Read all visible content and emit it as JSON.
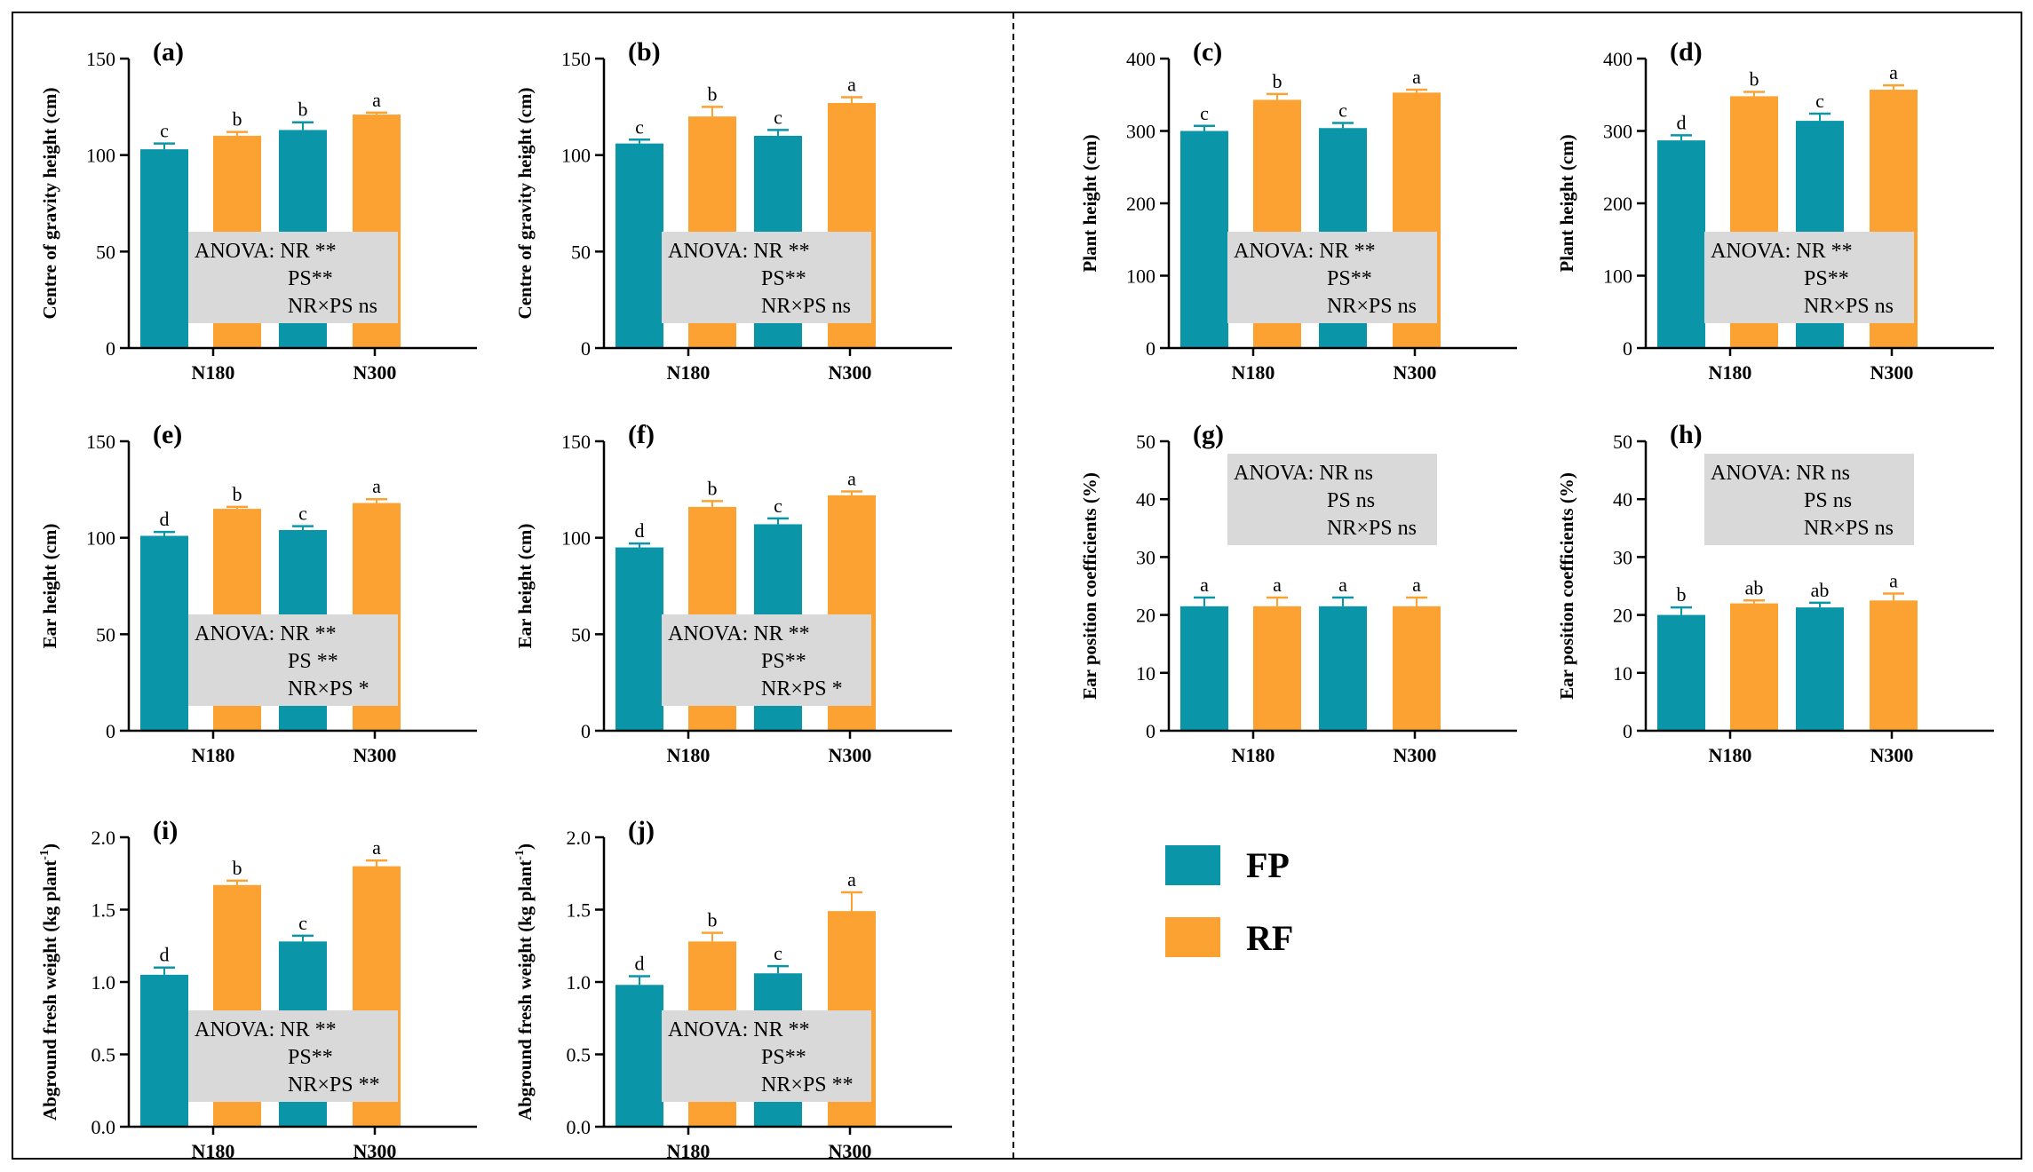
{
  "colors": {
    "FP": "#0a96a8",
    "RF": "#fca232",
    "anova_bg": "#d9d9d9",
    "axis": "#000000"
  },
  "legend": [
    {
      "key": "FP",
      "label": "FP"
    },
    {
      "key": "RF",
      "label": "RF"
    }
  ],
  "chart_data": [
    {
      "id": "a",
      "type": "bar",
      "panel_label": "(a)",
      "ylabel": "Centre of gravity height (cm)",
      "categories": [
        "N180",
        "N300"
      ],
      "ylim": [
        0,
        150
      ],
      "yticks": [
        0,
        50,
        100,
        150
      ],
      "series": [
        {
          "name": "FP",
          "values": [
            103,
            113
          ],
          "errors": [
            3,
            4
          ],
          "letters": [
            "c",
            "b"
          ]
        },
        {
          "name": "RF",
          "values": [
            110,
            121
          ],
          "errors": [
            2,
            1
          ],
          "letters": [
            "b",
            "a"
          ]
        }
      ],
      "anova": [
        "ANOVA: NR **",
        "PS**",
        "NR×PS ns"
      ],
      "anova_position": "bottom"
    },
    {
      "id": "b",
      "type": "bar",
      "panel_label": "(b)",
      "ylabel": "Centre of gravity height (cm)",
      "categories": [
        "N180",
        "N300"
      ],
      "ylim": [
        0,
        150
      ],
      "yticks": [
        0,
        50,
        100,
        150
      ],
      "series": [
        {
          "name": "FP",
          "values": [
            106,
            110
          ],
          "errors": [
            2,
            3
          ],
          "letters": [
            "c",
            "c"
          ]
        },
        {
          "name": "RF",
          "values": [
            120,
            127
          ],
          "errors": [
            5,
            3
          ],
          "letters": [
            "b",
            "a"
          ]
        }
      ],
      "anova": [
        "ANOVA: NR **",
        "PS**",
        "NR×PS ns"
      ],
      "anova_position": "bottom"
    },
    {
      "id": "c",
      "type": "bar",
      "panel_label": "(c)",
      "ylabel": "Plant height (cm)",
      "categories": [
        "N180",
        "N300"
      ],
      "ylim": [
        0,
        400
      ],
      "yticks": [
        0,
        100,
        200,
        300,
        400
      ],
      "series": [
        {
          "name": "FP",
          "values": [
            300,
            304
          ],
          "errors": [
            7,
            7
          ],
          "letters": [
            "c",
            "c"
          ]
        },
        {
          "name": "RF",
          "values": [
            343,
            353
          ],
          "errors": [
            8,
            4
          ],
          "letters": [
            "b",
            "a"
          ]
        }
      ],
      "anova": [
        "ANOVA: NR **",
        "PS**",
        "NR×PS ns"
      ],
      "anova_position": "bottom"
    },
    {
      "id": "d",
      "type": "bar",
      "panel_label": "(d)",
      "ylabel": "Plant height (cm)",
      "categories": [
        "N180",
        "N300"
      ],
      "ylim": [
        0,
        400
      ],
      "yticks": [
        0,
        100,
        200,
        300,
        400
      ],
      "series": [
        {
          "name": "FP",
          "values": [
            287,
            314
          ],
          "errors": [
            7,
            10
          ],
          "letters": [
            "d",
            "c"
          ]
        },
        {
          "name": "RF",
          "values": [
            348,
            357
          ],
          "errors": [
            6,
            6
          ],
          "letters": [
            "b",
            "a"
          ]
        }
      ],
      "anova": [
        "ANOVA: NR **",
        "PS**",
        "NR×PS ns"
      ],
      "anova_position": "bottom"
    },
    {
      "id": "e",
      "type": "bar",
      "panel_label": "(e)",
      "ylabel": "Ear height (cm)",
      "categories": [
        "N180",
        "N300"
      ],
      "ylim": [
        0,
        150
      ],
      "yticks": [
        0,
        50,
        100,
        150
      ],
      "series": [
        {
          "name": "FP",
          "values": [
            101,
            104
          ],
          "errors": [
            2,
            2
          ],
          "letters": [
            "d",
            "c"
          ]
        },
        {
          "name": "RF",
          "values": [
            115,
            118
          ],
          "errors": [
            1,
            2
          ],
          "letters": [
            "b",
            "a"
          ]
        }
      ],
      "anova": [
        "ANOVA: NR **",
        "PS **",
        "NR×PS *"
      ],
      "anova_position": "bottom"
    },
    {
      "id": "f",
      "type": "bar",
      "panel_label": "(f)",
      "ylabel": "Ear height (cm)",
      "categories": [
        "N180",
        "N300"
      ],
      "ylim": [
        0,
        150
      ],
      "yticks": [
        0,
        50,
        100,
        150
      ],
      "series": [
        {
          "name": "FP",
          "values": [
            95,
            107
          ],
          "errors": [
            2,
            3
          ],
          "letters": [
            "d",
            "c"
          ]
        },
        {
          "name": "RF",
          "values": [
            116,
            122
          ],
          "errors": [
            3,
            2
          ],
          "letters": [
            "b",
            "a"
          ]
        }
      ],
      "anova": [
        "ANOVA: NR **",
        "PS**",
        "NR×PS *"
      ],
      "anova_position": "bottom"
    },
    {
      "id": "g",
      "type": "bar",
      "panel_label": "(g)",
      "ylabel": "Ear position coefficients (%)",
      "categories": [
        "N180",
        "N300"
      ],
      "ylim": [
        0,
        50
      ],
      "yticks": [
        0,
        10,
        20,
        30,
        40,
        50
      ],
      "series": [
        {
          "name": "FP",
          "values": [
            21.5,
            21.5
          ],
          "errors": [
            1.5,
            1.5
          ],
          "letters": [
            "a",
            "a"
          ]
        },
        {
          "name": "RF",
          "values": [
            21.5,
            21.5
          ],
          "errors": [
            1.5,
            1.5
          ],
          "letters": [
            "a",
            "a"
          ]
        }
      ],
      "anova": [
        "ANOVA: NR ns",
        "PS ns",
        "NR×PS ns"
      ],
      "anova_position": "top"
    },
    {
      "id": "h",
      "type": "bar",
      "panel_label": "(h)",
      "ylabel": "Ear position coefficients (%)",
      "categories": [
        "N180",
        "N300"
      ],
      "ylim": [
        0,
        50
      ],
      "yticks": [
        0,
        10,
        20,
        30,
        40,
        50
      ],
      "series": [
        {
          "name": "FP",
          "values": [
            20,
            21.3
          ],
          "errors": [
            1.3,
            0.8
          ],
          "letters": [
            "b",
            "ab"
          ]
        },
        {
          "name": "RF",
          "values": [
            22,
            22.5
          ],
          "errors": [
            0.5,
            1.2
          ],
          "letters": [
            "ab",
            "a"
          ]
        }
      ],
      "anova": [
        "ANOVA: NR ns",
        "PS ns",
        "NR×PS ns"
      ],
      "anova_position": "top"
    },
    {
      "id": "i",
      "type": "bar",
      "panel_label": "(i)",
      "ylabel": "Abground fresh weight (kg plant",
      "ylabel_superscript": "-1",
      "ylabel_suffix": ")",
      "categories": [
        "N180",
        "N300"
      ],
      "ylim": [
        0,
        2.0
      ],
      "yticks": [
        0.0,
        0.5,
        1.0,
        1.5,
        2.0
      ],
      "series": [
        {
          "name": "FP",
          "values": [
            1.05,
            1.28
          ],
          "errors": [
            0.05,
            0.04
          ],
          "letters": [
            "d",
            "c"
          ]
        },
        {
          "name": "RF",
          "values": [
            1.67,
            1.8
          ],
          "errors": [
            0.03,
            0.04
          ],
          "letters": [
            "b",
            "a"
          ]
        }
      ],
      "anova": [
        "ANOVA: NR **",
        "PS**",
        "NR×PS **"
      ],
      "anova_position": "bottom"
    },
    {
      "id": "j",
      "type": "bar",
      "panel_label": "(j)",
      "ylabel": "Abground fresh weight (kg plant",
      "ylabel_superscript": "-1",
      "ylabel_suffix": ")",
      "categories": [
        "N180",
        "N300"
      ],
      "ylim": [
        0,
        2.0
      ],
      "yticks": [
        0.0,
        0.5,
        1.0,
        1.5,
        2.0
      ],
      "series": [
        {
          "name": "FP",
          "values": [
            0.98,
            1.06
          ],
          "errors": [
            0.06,
            0.05
          ],
          "letters": [
            "d",
            "c"
          ]
        },
        {
          "name": "RF",
          "values": [
            1.28,
            1.49
          ],
          "errors": [
            0.06,
            0.13
          ],
          "letters": [
            "b",
            "a"
          ]
        }
      ],
      "anova": [
        "ANOVA: NR **",
        "PS**",
        "NR×PS **"
      ],
      "anova_position": "bottom"
    }
  ]
}
